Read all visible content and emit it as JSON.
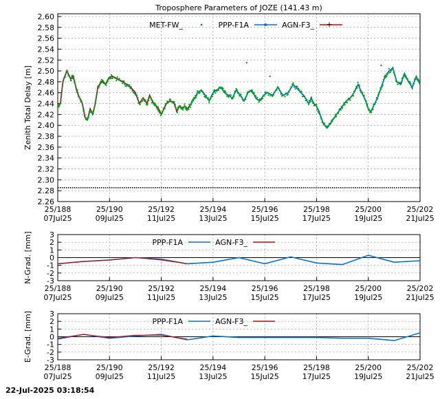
{
  "chart_data": [
    {
      "type": "line",
      "title": "Troposphere Parameters of JOZE (141.43 m)",
      "ylabel": "Zenith Total Delay [m]",
      "xlim": [
        188,
        202
      ],
      "ylim": [
        2.26,
        2.605
      ],
      "yticks": [
        "2.26",
        "2.28",
        "2.30",
        "2.32",
        "2.34",
        "2.36",
        "2.38",
        "2.40",
        "2.42",
        "2.44",
        "2.46",
        "2.48",
        "2.50",
        "2.52",
        "2.54",
        "2.56",
        "2.58",
        "2.60"
      ],
      "xticks": [
        {
          "x": 188,
          "l1": "25/188",
          "l2": "07Jul25"
        },
        {
          "x": 190,
          "l1": "25/190",
          "l2": "09Jul25"
        },
        {
          "x": 192,
          "l1": "25/192",
          "l2": "11Jul25"
        },
        {
          "x": 194,
          "l1": "25/194",
          "l2": "13Jul25"
        },
        {
          "x": 196,
          "l1": "25/196",
          "l2": "15Jul25"
        },
        {
          "x": 198,
          "l1": "25/198",
          "l2": "17Jul25"
        },
        {
          "x": 200,
          "l1": "25/200",
          "l2": "19Jul25"
        },
        {
          "x": 202,
          "l1": "25/202",
          "l2": "21Jul25"
        }
      ],
      "grid": true,
      "legend_position": "top",
      "series": [
        {
          "name": "MET-FW_",
          "color": "#00a000",
          "style": "dots"
        },
        {
          "name": "PPP-F1A",
          "color": "#0072d0",
          "style": "line"
        },
        {
          "name": "AGN-F3_",
          "color": "#d00000",
          "style": "line"
        }
      ],
      "agn_end_x": 193.1,
      "ppp_ztd": {
        "x": [
          188.0,
          188.1,
          188.2,
          188.35,
          188.5,
          188.6,
          188.7,
          188.8,
          188.95,
          189.05,
          189.15,
          189.25,
          189.35,
          189.45,
          189.55,
          189.7,
          189.85,
          189.95,
          190.1,
          190.3,
          190.5,
          190.65,
          190.8,
          191.0,
          191.15,
          191.3,
          191.45,
          191.55,
          191.7,
          191.8,
          191.9,
          192.0,
          192.1,
          192.2,
          192.35,
          192.5,
          192.6,
          192.7,
          192.8,
          192.9,
          193.0,
          193.1,
          193.2,
          193.3,
          193.4,
          193.55,
          193.7,
          193.85,
          194.0,
          194.15,
          194.3,
          194.45,
          194.6,
          194.75,
          194.9,
          195.05,
          195.2,
          195.35,
          195.5,
          195.65,
          195.8,
          195.95,
          196.1,
          196.3,
          196.5,
          196.7,
          196.9,
          197.1,
          197.3,
          197.5,
          197.7,
          197.8,
          197.9,
          198.0,
          198.1,
          198.25,
          198.4,
          198.55,
          198.7,
          198.85,
          199.0,
          199.15,
          199.3,
          199.45,
          199.6,
          199.75,
          199.9,
          200.0,
          200.1,
          200.2,
          200.35,
          200.5,
          200.65,
          200.8,
          200.95,
          201.1,
          201.25,
          201.4,
          201.55,
          201.7,
          201.85,
          202.0
        ],
        "y": [
          2.435,
          2.44,
          2.48,
          2.5,
          2.485,
          2.49,
          2.47,
          2.455,
          2.44,
          2.415,
          2.41,
          2.43,
          2.42,
          2.44,
          2.47,
          2.48,
          2.475,
          2.485,
          2.49,
          2.485,
          2.48,
          2.475,
          2.47,
          2.46,
          2.44,
          2.45,
          2.44,
          2.455,
          2.44,
          2.435,
          2.43,
          2.42,
          2.43,
          2.44,
          2.445,
          2.44,
          2.425,
          2.435,
          2.43,
          2.435,
          2.43,
          2.435,
          2.445,
          2.45,
          2.46,
          2.465,
          2.455,
          2.445,
          2.46,
          2.465,
          2.47,
          2.46,
          2.455,
          2.45,
          2.465,
          2.455,
          2.445,
          2.46,
          2.465,
          2.45,
          2.445,
          2.455,
          2.46,
          2.455,
          2.47,
          2.455,
          2.46,
          2.475,
          2.465,
          2.455,
          2.44,
          2.45,
          2.44,
          2.435,
          2.425,
          2.405,
          2.395,
          2.405,
          2.415,
          2.425,
          2.435,
          2.445,
          2.45,
          2.46,
          2.475,
          2.46,
          2.445,
          2.43,
          2.425,
          2.435,
          2.45,
          2.47,
          2.49,
          2.5,
          2.505,
          2.48,
          2.475,
          2.495,
          2.48,
          2.47,
          2.49,
          2.475
        ]
      }
    },
    {
      "type": "line",
      "ylabel": "N-Grad. [mm]",
      "xlim": [
        188,
        202
      ],
      "ylim": [
        -3,
        3
      ],
      "yticks": [
        "-3",
        "-2",
        "-1",
        "0",
        "1",
        "2",
        "3"
      ],
      "grid": true,
      "legend_position": "top",
      "series": [
        {
          "name": "PPP-F1A",
          "color": "#0072d0",
          "x": [
            188,
            189,
            190,
            191,
            192,
            193,
            194,
            195,
            196,
            197,
            198,
            199,
            200,
            201,
            202
          ],
          "values": [
            -0.8,
            -0.5,
            -0.3,
            0.0,
            -0.2,
            -0.8,
            -0.6,
            0.0,
            -0.8,
            0.1,
            -0.7,
            -0.9,
            0.3,
            -0.6,
            -0.4
          ]
        },
        {
          "name": "AGN-F3_",
          "color": "#d00000",
          "x": [
            188,
            189,
            190,
            191,
            192,
            193
          ],
          "values": [
            -0.8,
            -0.5,
            -0.3,
            0.0,
            -0.3,
            -0.8
          ]
        }
      ]
    },
    {
      "type": "line",
      "ylabel": "E-Grad. [mm]",
      "xlim": [
        188,
        202
      ],
      "ylim": [
        -3,
        3
      ],
      "yticks": [
        "-3",
        "-2",
        "-1",
        "0",
        "1",
        "2",
        "3"
      ],
      "grid": true,
      "legend_position": "top",
      "series": [
        {
          "name": "PPP-F1A",
          "color": "#0072d0",
          "x": [
            188,
            189,
            190,
            191,
            192,
            193,
            194,
            195,
            196,
            197,
            198,
            199,
            200,
            201,
            202
          ],
          "values": [
            -0.3,
            0.3,
            -0.2,
            0.1,
            0.3,
            -0.4,
            0.1,
            -0.1,
            -0.1,
            -0.1,
            -0.1,
            -0.2,
            -0.2,
            -0.5,
            0.5
          ]
        },
        {
          "name": "AGN-F3_",
          "color": "#d00000",
          "x": [
            188,
            189,
            190,
            191,
            192,
            193
          ],
          "values": [
            -0.2,
            0.3,
            -0.1,
            0.2,
            0.2,
            -0.3
          ]
        }
      ]
    }
  ],
  "footer": "22-Jul-2025 03:18:54"
}
